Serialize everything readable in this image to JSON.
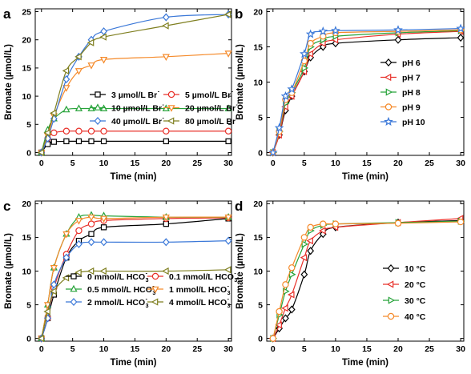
{
  "figure": {
    "panels": [
      {
        "letter": "a",
        "legend_layout": "two-column"
      },
      {
        "letter": "b",
        "legend_layout": "one-column"
      },
      {
        "letter": "c",
        "legend_layout": "two-column"
      },
      {
        "letter": "d",
        "legend_layout": "one-column"
      }
    ]
  },
  "chart_data": [
    {
      "type": "line",
      "panel": "a",
      "xlabel": "Time (min)",
      "ylabel": "Bromate (µmol/L)",
      "xlim": [
        -1,
        30.5
      ],
      "ylim": [
        -0.5,
        25.5
      ],
      "xticks": [
        0,
        5,
        10,
        15,
        20,
        25,
        30
      ],
      "yticks": [
        0,
        5,
        10,
        15,
        20,
        25
      ],
      "legend_placement": "lower-right",
      "series": [
        {
          "name": "3 µmol/L Br",
          "ion_sup": "-",
          "color": "#000000",
          "marker": "square",
          "x": [
            0,
            1,
            2,
            4,
            6,
            8,
            10,
            20,
            30
          ],
          "y": [
            0,
            1.5,
            1.9,
            2.0,
            2.0,
            2.0,
            2.0,
            2.0,
            2.0
          ]
        },
        {
          "name": "5 µmol/L Br",
          "ion_sup": "-",
          "color": "#e8312a",
          "marker": "circle",
          "x": [
            0,
            1,
            2,
            4,
            6,
            8,
            10,
            20,
            30
          ],
          "y": [
            0,
            2.5,
            3.5,
            3.8,
            3.8,
            3.8,
            3.8,
            3.8,
            3.8
          ]
        },
        {
          "name": "10 µmol/L Br",
          "ion_sup": "-",
          "color": "#27a33a",
          "marker": "triangle-up",
          "x": [
            0,
            1,
            2,
            4,
            6,
            8,
            10,
            20,
            30
          ],
          "y": [
            0,
            4.0,
            6.0,
            7.6,
            7.8,
            7.8,
            7.8,
            7.8,
            7.8
          ]
        },
        {
          "name": "20 µmol/L Br",
          "ion_sup": "-",
          "color": "#f58a2a",
          "marker": "triangle-down",
          "x": [
            0,
            1,
            2,
            4,
            6,
            8,
            10,
            20,
            30
          ],
          "y": [
            0,
            3.0,
            6.5,
            11.5,
            14.5,
            15.5,
            16.5,
            17.0,
            17.6
          ]
        },
        {
          "name": "40 µmol/L Br",
          "ion_sup": "-",
          "color": "#3b78d8",
          "marker": "diamond",
          "x": [
            0,
            1,
            2,
            4,
            6,
            8,
            10,
            20,
            30
          ],
          "y": [
            0,
            2.5,
            6.0,
            13.0,
            17.0,
            20.0,
            21.5,
            24.0,
            24.5
          ]
        },
        {
          "name": "80 µmol/L Br",
          "ion_sup": "-",
          "color": "#7f7f20",
          "marker": "triangle-left",
          "x": [
            0,
            1,
            2,
            4,
            6,
            8,
            10,
            20,
            30
          ],
          "y": [
            0,
            3.5,
            7.0,
            14.5,
            17.0,
            19.5,
            20.5,
            22.5,
            24.5
          ]
        }
      ]
    },
    {
      "type": "line",
      "panel": "b",
      "xlabel": "Time (min)",
      "ylabel": "Bromate (µmol/L)",
      "xlim": [
        -1,
        30.5
      ],
      "ylim": [
        -0.4,
        20.4
      ],
      "xticks": [
        0,
        5,
        10,
        15,
        20,
        25,
        30
      ],
      "yticks": [
        0,
        5,
        10,
        15,
        20
      ],
      "legend_placement": "right",
      "series": [
        {
          "name": "pH 6",
          "color": "#000000",
          "marker": "diamond",
          "x": [
            0,
            1,
            2,
            3,
            5,
            6,
            8,
            10,
            20,
            30
          ],
          "y": [
            0,
            2.5,
            6.0,
            8.0,
            11.5,
            13.5,
            15.0,
            15.5,
            16.0,
            16.3
          ]
        },
        {
          "name": "pH 7",
          "color": "#e8312a",
          "marker": "triangle-left",
          "x": [
            0,
            1,
            2,
            3,
            5,
            6,
            8,
            10,
            20,
            30
          ],
          "y": [
            0,
            2.5,
            6.5,
            8.0,
            11.5,
            14.0,
            15.5,
            16.0,
            16.8,
            17.2
          ]
        },
        {
          "name": "pH 8",
          "color": "#27a33a",
          "marker": "triangle-right",
          "x": [
            0,
            1,
            2,
            3,
            5,
            6,
            8,
            10,
            20,
            30
          ],
          "y": [
            0,
            3.0,
            7.0,
            8.5,
            12.0,
            15.0,
            16.0,
            16.5,
            17.0,
            17.3
          ]
        },
        {
          "name": "pH 9",
          "color": "#f58a2a",
          "marker": "circle",
          "x": [
            0,
            1,
            2,
            3,
            5,
            6,
            8,
            10,
            20,
            30
          ],
          "y": [
            0,
            3.0,
            7.5,
            8.5,
            13.0,
            15.5,
            16.5,
            17.0,
            17.2,
            17.4
          ]
        },
        {
          "name": "pH 10",
          "color": "#3b78d8",
          "marker": "star",
          "x": [
            0,
            1,
            2,
            3,
            5,
            6,
            8,
            10,
            20,
            30
          ],
          "y": [
            0,
            3.5,
            8.0,
            9.0,
            14.0,
            16.8,
            17.2,
            17.3,
            17.4,
            17.6
          ]
        }
      ]
    },
    {
      "type": "line",
      "panel": "c",
      "xlabel": "Time (min)",
      "ylabel": "Bromate (µmol/L)",
      "xlim": [
        -1,
        30.5
      ],
      "ylim": [
        -0.4,
        20.4
      ],
      "xticks": [
        0,
        5,
        10,
        15,
        20,
        25,
        30
      ],
      "yticks": [
        0,
        5,
        10,
        15,
        20
      ],
      "legend_placement": "lower-right",
      "series": [
        {
          "name": "0 mmol/L HCO",
          "ion_sub": "3",
          "ion_sup": "-",
          "color": "#000000",
          "marker": "square",
          "x": [
            0,
            1,
            2,
            4,
            6,
            8,
            10,
            20,
            30
          ],
          "y": [
            0,
            3.0,
            6.5,
            12.0,
            14.5,
            15.5,
            16.5,
            17.0,
            17.8
          ]
        },
        {
          "name": "0.1 mmol/L HCO",
          "ion_sub": "3",
          "ion_sup": "-",
          "color": "#e8312a",
          "marker": "circle",
          "x": [
            0,
            1,
            2,
            4,
            6,
            8,
            10,
            20,
            30
          ],
          "y": [
            0,
            3.0,
            7.5,
            12.5,
            16.0,
            17.0,
            17.5,
            17.8,
            17.9
          ]
        },
        {
          "name": "0.5 mmol/L HCO",
          "ion_sub": "3",
          "ion_sup": "-",
          "color": "#27a33a",
          "marker": "triangle-up",
          "x": [
            0,
            1,
            2,
            4,
            6,
            8,
            10,
            20,
            30
          ],
          "y": [
            0,
            5.0,
            10.5,
            15.5,
            18.0,
            18.3,
            18.2,
            18.0,
            18.0
          ]
        },
        {
          "name": "1 mmol/L HCO",
          "ion_sub": "3",
          "ion_sup": "-",
          "color": "#f58a2a",
          "marker": "triangle-down",
          "x": [
            0,
            1,
            2,
            4,
            6,
            8,
            10,
            20,
            30
          ],
          "y": [
            0,
            5.0,
            10.5,
            15.5,
            17.5,
            18.0,
            17.8,
            18.0,
            18.0
          ]
        },
        {
          "name": "2 mmol/L HCO",
          "ion_sub": "3",
          "ion_sup": "-",
          "color": "#3b78d8",
          "marker": "diamond",
          "x": [
            0,
            1,
            2,
            4,
            6,
            8,
            10,
            20,
            30
          ],
          "y": [
            0,
            3.0,
            8.0,
            12.0,
            14.0,
            14.3,
            14.3,
            14.3,
            14.5
          ]
        },
        {
          "name": "4 mmol/L HCO",
          "ion_sub": "3",
          "ion_sup": "-",
          "color": "#7f7f20",
          "marker": "triangle-left",
          "x": [
            0,
            1,
            2,
            4,
            6,
            8,
            10,
            20,
            30
          ],
          "y": [
            0,
            4.0,
            7.0,
            9.0,
            9.8,
            10.0,
            10.0,
            10.0,
            10.2
          ]
        }
      ]
    },
    {
      "type": "line",
      "panel": "d",
      "xlabel": "Time (min)",
      "ylabel": "Bromate (µmol/L)",
      "xlim": [
        -1,
        30.5
      ],
      "ylim": [
        -0.4,
        20.4
      ],
      "xticks": [
        0,
        5,
        10,
        15,
        20,
        25,
        30
      ],
      "yticks": [
        0,
        5,
        10,
        15,
        20
      ],
      "legend_placement": "right",
      "series": [
        {
          "name": "10 °C",
          "color": "#000000",
          "marker": "diamond",
          "x": [
            0,
            1,
            2,
            3,
            5,
            6,
            8,
            10,
            20,
            30
          ],
          "y": [
            0,
            1.5,
            3.0,
            4.3,
            9.5,
            13.0,
            15.5,
            16.5,
            17.2,
            17.5
          ]
        },
        {
          "name": "20 °C",
          "color": "#e8312a",
          "marker": "triangle-left",
          "x": [
            0,
            1,
            2,
            3,
            5,
            6,
            8,
            10,
            20,
            30
          ],
          "y": [
            0,
            2.0,
            4.5,
            6.5,
            12.0,
            14.5,
            16.0,
            16.5,
            17.2,
            17.8
          ]
        },
        {
          "name": "30 °C",
          "color": "#27a33a",
          "marker": "triangle-right",
          "x": [
            0,
            1,
            2,
            3,
            5,
            6,
            8,
            10,
            20,
            30
          ],
          "y": [
            0,
            3.5,
            7.0,
            9.5,
            14.0,
            16.0,
            16.8,
            17.0,
            17.2,
            17.4
          ]
        },
        {
          "name": "40 °C",
          "color": "#f58a2a",
          "marker": "circle",
          "x": [
            0,
            1,
            2,
            3,
            5,
            6,
            8,
            10,
            20,
            30
          ],
          "y": [
            0,
            4.0,
            8.0,
            10.5,
            15.0,
            16.5,
            17.0,
            17.0,
            17.1,
            17.3
          ]
        }
      ]
    }
  ]
}
